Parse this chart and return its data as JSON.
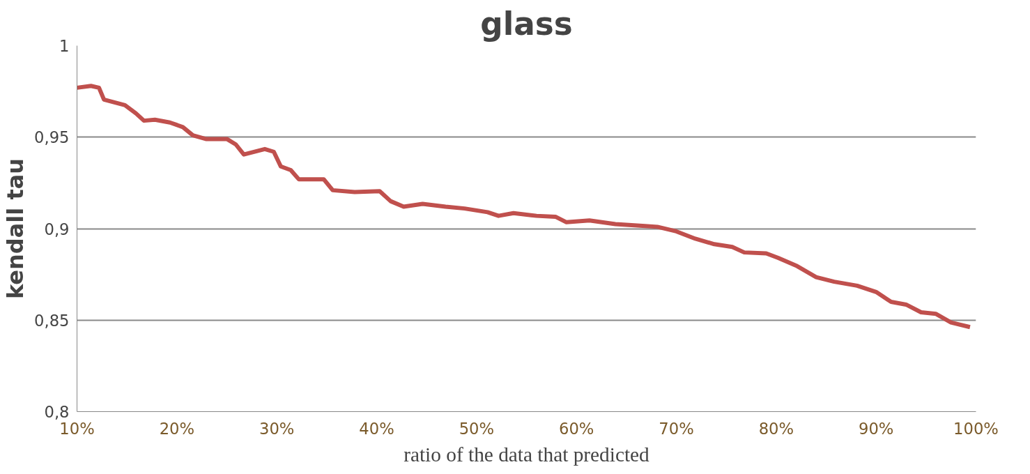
{
  "chart_data": {
    "type": "line",
    "title": "glass",
    "xlabel": "ratio of the data that predicted",
    "ylabel": "kendall tau",
    "xlim": [
      10,
      100
    ],
    "xticks": [
      {
        "value": 10,
        "label": "10%"
      },
      {
        "value": 20,
        "label": "20%"
      },
      {
        "value": 30,
        "label": "30%"
      },
      {
        "value": 40,
        "label": "40%"
      },
      {
        "value": 50,
        "label": "50%"
      },
      {
        "value": 60,
        "label": "60%"
      },
      {
        "value": 70,
        "label": "70%"
      },
      {
        "value": 80,
        "label": "80%"
      },
      {
        "value": 90,
        "label": "90%"
      },
      {
        "value": 100,
        "label": "100%"
      }
    ],
    "ylim": [
      0.8,
      1
    ],
    "yticks": [
      {
        "value": 0.8,
        "label": "0,8"
      },
      {
        "value": 0.85,
        "label": "0,85"
      },
      {
        "value": 0.9,
        "label": "0,9"
      },
      {
        "value": 0.95,
        "label": "0,95"
      },
      {
        "value": 1,
        "label": "1"
      }
    ],
    "grid": "y",
    "marker": "none",
    "line_style": "solid",
    "series": [
      {
        "color": "#c0504d",
        "x": [
          10,
          11.4,
          12.2,
          12.7,
          14.8,
          15.9,
          16.7,
          17.8,
          19.3,
          20.6,
          21.6,
          22.9,
          25,
          25.9,
          26.7,
          28.8,
          29.7,
          30.4,
          31.4,
          32.2,
          34.7,
          35.6,
          37.8,
          40.3,
          41.4,
          42.7,
          44.6,
          46.9,
          48.8,
          51.1,
          52.2,
          53.7,
          56,
          57.9,
          59,
          61.3,
          63.9,
          66.6,
          68.1,
          70,
          71.9,
          73.8,
          75.6,
          76.8,
          79,
          80.2,
          82.1,
          84,
          85.8,
          88.1,
          90,
          91.5,
          93,
          94.5,
          96,
          97.5,
          99.4
        ],
        "values": [
          0.977,
          0.978,
          0.977,
          0.9705,
          0.9675,
          0.963,
          0.959,
          0.9595,
          0.958,
          0.9555,
          0.951,
          0.949,
          0.949,
          0.946,
          0.9405,
          0.9435,
          0.942,
          0.934,
          0.932,
          0.927,
          0.927,
          0.921,
          0.92,
          0.9205,
          0.915,
          0.912,
          0.9135,
          0.912,
          0.911,
          0.909,
          0.907,
          0.9085,
          0.907,
          0.9065,
          0.9035,
          0.9045,
          0.9025,
          0.9015,
          0.901,
          0.8985,
          0.8945,
          0.8915,
          0.89,
          0.887,
          0.8865,
          0.884,
          0.8795,
          0.8735,
          0.871,
          0.8688,
          0.8654,
          0.86,
          0.8585,
          0.8543,
          0.8534,
          0.8487,
          0.8462
        ]
      }
    ]
  }
}
